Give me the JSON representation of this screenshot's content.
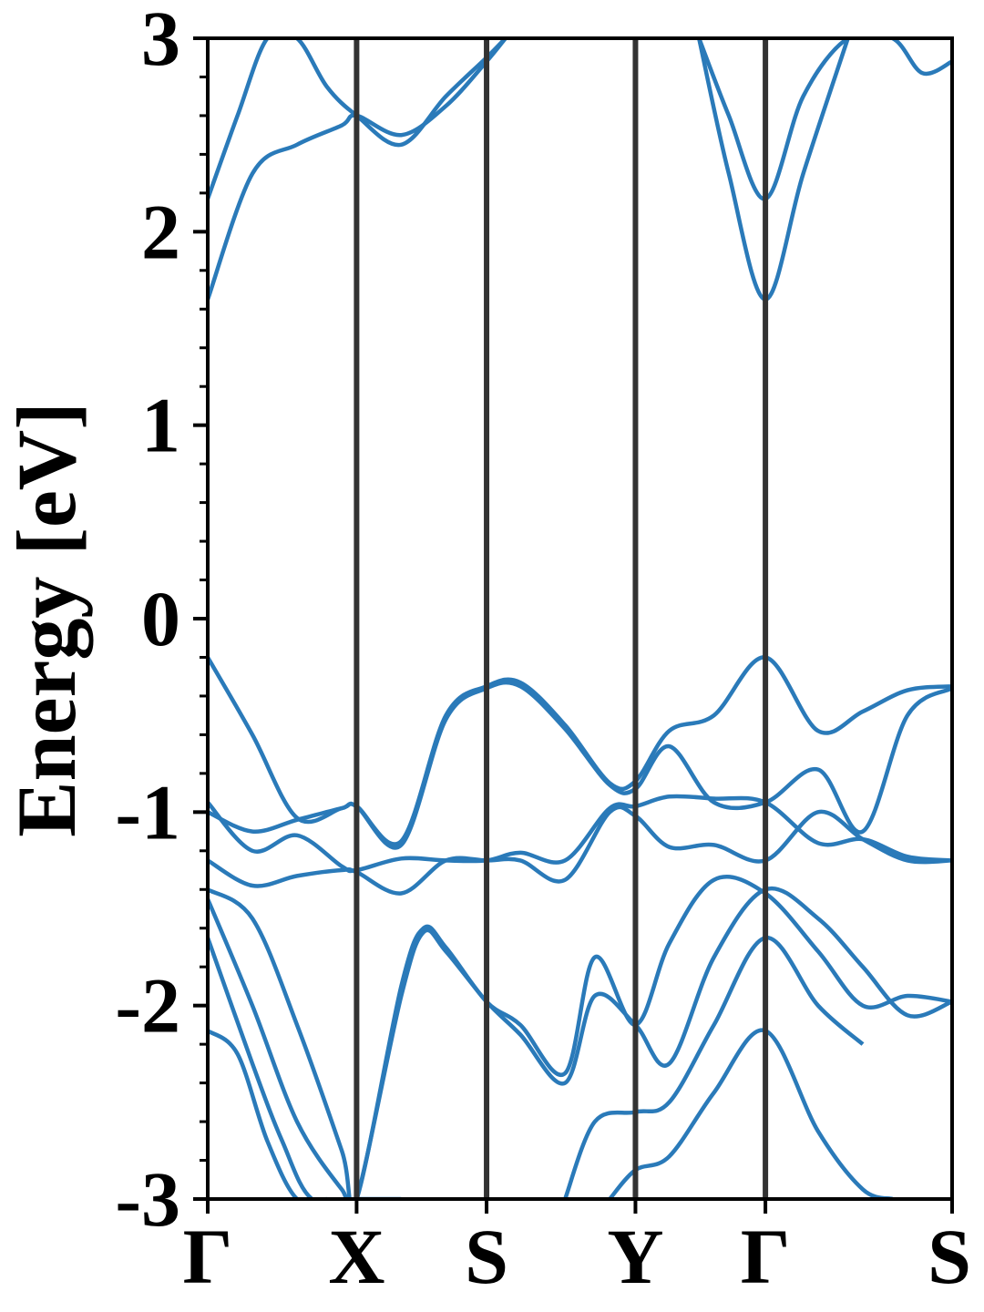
{
  "chart_data": {
    "type": "line",
    "title": "",
    "xlabel": "",
    "ylabel": "Energy [eV]",
    "ylim": [
      -3,
      3
    ],
    "xlim": [
      0,
      5
    ],
    "yticks": [
      -3,
      -2,
      -1,
      0,
      1,
      2,
      3
    ],
    "ytick_labels": [
      "-3",
      "-2",
      "-1",
      "0",
      "1",
      "2",
      "3"
    ],
    "kpoints": [
      {
        "label": "Γ",
        "x": 0
      },
      {
        "label": "X",
        "x": 1
      },
      {
        "label": "S",
        "x": 1.873
      },
      {
        "label": "Y",
        "x": 2.873
      },
      {
        "label": "Γ",
        "x": 3.746
      },
      {
        "label": "S",
        "x": 5
      }
    ],
    "grid": false,
    "band_color": "#2a7ab9",
    "kline_color": "#333333",
    "series": [
      {
        "x": [
          0,
          0.3,
          0.6,
          0.9,
          1.0,
          1.3,
          1.6,
          1.873,
          2.1,
          2.4,
          2.7,
          2.873,
          3.1,
          3.4,
          3.746,
          4.1,
          4.4,
          4.7,
          5.0
        ],
        "values": [
          -0.2,
          -0.6,
          -1.03,
          -0.98,
          -0.97,
          -1.15,
          -0.5,
          -0.35,
          -0.33,
          -0.55,
          -0.85,
          -0.84,
          -0.58,
          -0.5,
          -0.2,
          -0.58,
          -0.48,
          -0.37,
          -0.35
        ]
      },
      {
        "x": [
          0,
          0.3,
          0.6,
          0.9,
          1.0,
          1.3,
          1.6,
          1.873,
          2.1,
          2.4,
          2.7,
          2.873,
          3.1,
          3.4,
          3.746,
          4.1,
          4.4,
          4.7,
          5.0
        ],
        "values": [
          -1.0,
          -1.1,
          -1.04,
          -0.98,
          -0.97,
          -1.17,
          -0.52,
          -0.36,
          -0.35,
          -0.57,
          -0.86,
          -0.88,
          -0.66,
          -0.95,
          -0.95,
          -0.78,
          -1.1,
          -0.5,
          -0.36
        ]
      },
      {
        "x": [
          0,
          0.3,
          0.6,
          0.9,
          1.0,
          1.3,
          1.6,
          1.873,
          2.1,
          2.4,
          2.7,
          2.873,
          3.1,
          3.4,
          3.746,
          4.1,
          4.4,
          4.7,
          5.0
        ],
        "values": [
          -0.95,
          -1.2,
          -1.12,
          -1.28,
          -1.3,
          -1.24,
          -1.25,
          -1.25,
          -1.21,
          -1.25,
          -0.98,
          -0.97,
          -0.92,
          -0.93,
          -0.95,
          -1.16,
          -1.14,
          -1.23,
          -1.25
        ]
      },
      {
        "x": [
          0,
          0.3,
          0.6,
          0.9,
          1.0,
          1.3,
          1.6,
          1.873,
          2.1,
          2.4,
          2.7,
          2.873,
          3.1,
          3.4,
          3.746,
          4.1,
          4.4,
          4.7,
          5.0
        ],
        "values": [
          -1.25,
          -1.38,
          -1.33,
          -1.3,
          -1.31,
          -1.42,
          -1.25,
          -1.25,
          -1.25,
          -1.35,
          -1.0,
          -1.02,
          -1.18,
          -1.17,
          -1.25,
          -1.0,
          -1.14,
          -1.25,
          -1.25
        ]
      },
      {
        "x": [
          0,
          0.3,
          0.6,
          0.9,
          1.0,
          1.3,
          1.45,
          1.6,
          1.873,
          2.1,
          2.4,
          2.6,
          2.873,
          3.1,
          3.4,
          3.746,
          4.1,
          4.4,
          4.7,
          5.0
        ],
        "values": [
          -1.4,
          -1.55,
          -2.1,
          -2.75,
          -3.0,
          -1.9,
          -1.6,
          -1.7,
          -1.98,
          -2.1,
          -2.35,
          -1.75,
          -2.1,
          -1.68,
          -1.35,
          -1.42,
          -1.72,
          -2.0,
          -1.95,
          -1.98
        ]
      },
      {
        "x": [
          0,
          0.3,
          0.6,
          0.9,
          1.0,
          1.3,
          1.45,
          1.6,
          1.873,
          2.1,
          2.4,
          2.6,
          2.873,
          3.1,
          3.4,
          3.746,
          4.1,
          4.4,
          4.7,
          5.0
        ],
        "values": [
          -1.45,
          -2.0,
          -2.6,
          -2.95,
          -3.0,
          -1.95,
          -1.62,
          -1.72,
          -1.98,
          -2.15,
          -2.4,
          -1.95,
          -2.1,
          -2.3,
          -1.75,
          -1.4,
          -1.55,
          -1.8,
          -2.05,
          -1.98
        ]
      },
      {
        "x": [
          0,
          0.3,
          0.5,
          0.7,
          1.0,
          1.3
        ],
        "values": [
          -1.65,
          -2.3,
          -2.7,
          -3.0,
          -3.0,
          -3.0
        ]
      },
      {
        "x": [
          2.4,
          2.6,
          2.873,
          3.1,
          3.4,
          3.746,
          4.1,
          4.4
        ],
        "values": [
          -3.0,
          -2.6,
          -2.55,
          -2.5,
          -2.1,
          -1.65,
          -2.0,
          -2.2
        ]
      },
      {
        "x": [
          0,
          0.2,
          0.4,
          0.6,
          0.8
        ],
        "values": [
          -2.13,
          -2.25,
          -2.7,
          -3.0,
          -3.0
        ]
      },
      {
        "x": [
          2.7,
          2.873,
          3.1,
          3.4,
          3.746,
          4.1,
          4.4,
          4.6
        ],
        "values": [
          -3.0,
          -2.85,
          -2.78,
          -2.45,
          -2.13,
          -2.65,
          -2.95,
          -3.0
        ]
      },
      {
        "x": [
          0,
          0.3,
          0.6,
          0.9,
          1.0,
          1.3,
          1.6,
          1.873,
          2.0
        ],
        "values": [
          1.65,
          2.3,
          2.45,
          2.55,
          2.6,
          2.5,
          2.65,
          2.88,
          3.0
        ]
      },
      {
        "x": [
          0,
          0.2,
          0.4,
          0.6,
          0.8,
          1.0,
          1.3,
          1.6,
          1.873,
          2.0
        ],
        "values": [
          2.17,
          2.6,
          3.0,
          3.0,
          2.75,
          2.6,
          2.45,
          2.7,
          2.9,
          3.0
        ]
      },
      {
        "x": [
          3.3,
          3.5,
          3.746,
          4.0,
          4.3
        ],
        "values": [
          3.0,
          2.3,
          1.65,
          2.3,
          3.0
        ]
      },
      {
        "x": [
          3.3,
          3.5,
          3.746,
          4.0,
          4.3,
          4.6,
          4.8,
          5.0
        ],
        "values": [
          3.0,
          2.6,
          2.17,
          2.7,
          3.0,
          3.0,
          2.82,
          2.88
        ]
      }
    ]
  }
}
